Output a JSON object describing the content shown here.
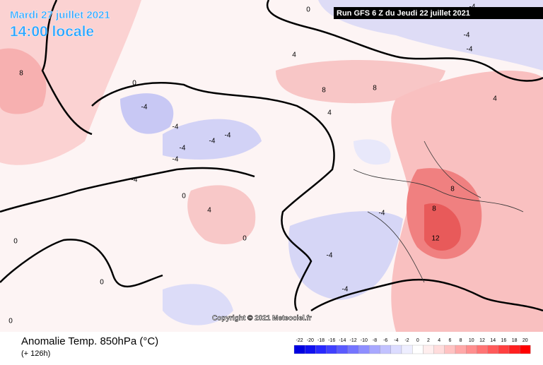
{
  "header": {
    "title": "Mardi 27 juillet 2021",
    "time": "14:00 locale",
    "run": "Run GFS 6 Z du Jeudi 22 juillet 2021"
  },
  "copyright": "Copyright © 2021 Meteociel.fr",
  "footer": {
    "variable": "Anomalie Temp. 850hPa (°C)",
    "lead": "(+ 126h)"
  },
  "contour_labels": [
    0,
    -4,
    -4,
    -4,
    8,
    4,
    8,
    8,
    0,
    -4,
    -4,
    -4,
    -4,
    -4,
    -4,
    -4,
    4,
    0,
    0,
    8,
    12,
    8,
    -4,
    -4,
    -4,
    0,
    0,
    4,
    4,
    0
  ],
  "legend": {
    "ticks": [
      -22,
      -20,
      -18,
      -16,
      -14,
      -12,
      -10,
      -8,
      -6,
      -4,
      -2,
      0,
      2,
      4,
      6,
      8,
      10,
      12,
      14,
      16,
      18,
      20
    ],
    "colors": [
      "#0000e0",
      "#1010f0",
      "#2828ff",
      "#4040ff",
      "#5a5aff",
      "#7474ff",
      "#8e8eff",
      "#a8a8ff",
      "#c2c2ff",
      "#dcdcff",
      "#eeeeff",
      "#ffffff",
      "#ffeeee",
      "#ffdcdc",
      "#ffc2c2",
      "#ffa8a8",
      "#ff8e8e",
      "#ff7474",
      "#ff5a5a",
      "#ff4040",
      "#ff2020",
      "#ff0000"
    ]
  }
}
